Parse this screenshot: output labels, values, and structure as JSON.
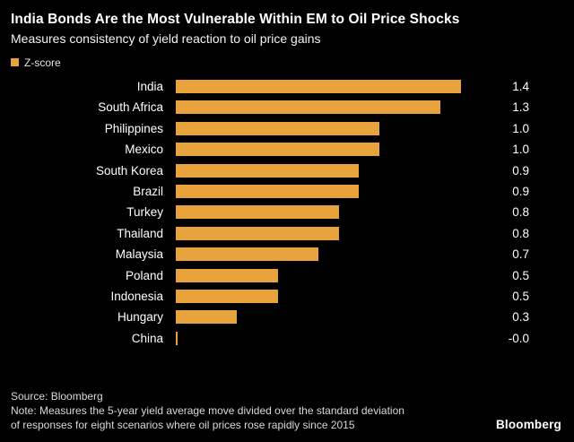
{
  "title": "India Bonds Are the Most Vulnerable Within EM to Oil Price Shocks",
  "subtitle": "Measures consistency of yield reaction to oil price gains",
  "legend": {
    "label": "Z-score",
    "color": "#e8a33c"
  },
  "chart_data": {
    "type": "bar",
    "orientation": "horizontal",
    "title": "India Bonds Are the Most Vulnerable Within EM to Oil Price Shocks",
    "subtitle": "Measures consistency of yield reaction to oil price gains",
    "legend_entries": [
      "Z-score"
    ],
    "categories": [
      "India",
      "South Africa",
      "Philippines",
      "Mexico",
      "South Korea",
      "Brazil",
      "Turkey",
      "Thailand",
      "Malaysia",
      "Poland",
      "Indonesia",
      "Hungary",
      "China"
    ],
    "values": [
      1.4,
      1.3,
      1.0,
      1.0,
      0.9,
      0.9,
      0.8,
      0.8,
      0.7,
      0.5,
      0.5,
      0.3,
      -0.0
    ],
    "value_labels": [
      "1.4",
      "1.3",
      "1.0",
      "1.0",
      "0.9",
      "0.9",
      "0.8",
      "0.8",
      "0.7",
      "0.5",
      "0.5",
      "0.3",
      "-0.0"
    ],
    "bar_color": "#e8a33c",
    "xlabel": "",
    "ylabel": "",
    "xlim": [
      0,
      1.55
    ],
    "grid": false,
    "legend_position": "top-left",
    "background": "#000000"
  },
  "footer": {
    "source": "Source: Bloomberg",
    "note_line1": "Note: Measures the 5-year yield average move divided over the standard deviation",
    "note_line2": "of responses for eight scenarios where oil prices rose rapidly since 2015",
    "brand": "Bloomberg"
  }
}
